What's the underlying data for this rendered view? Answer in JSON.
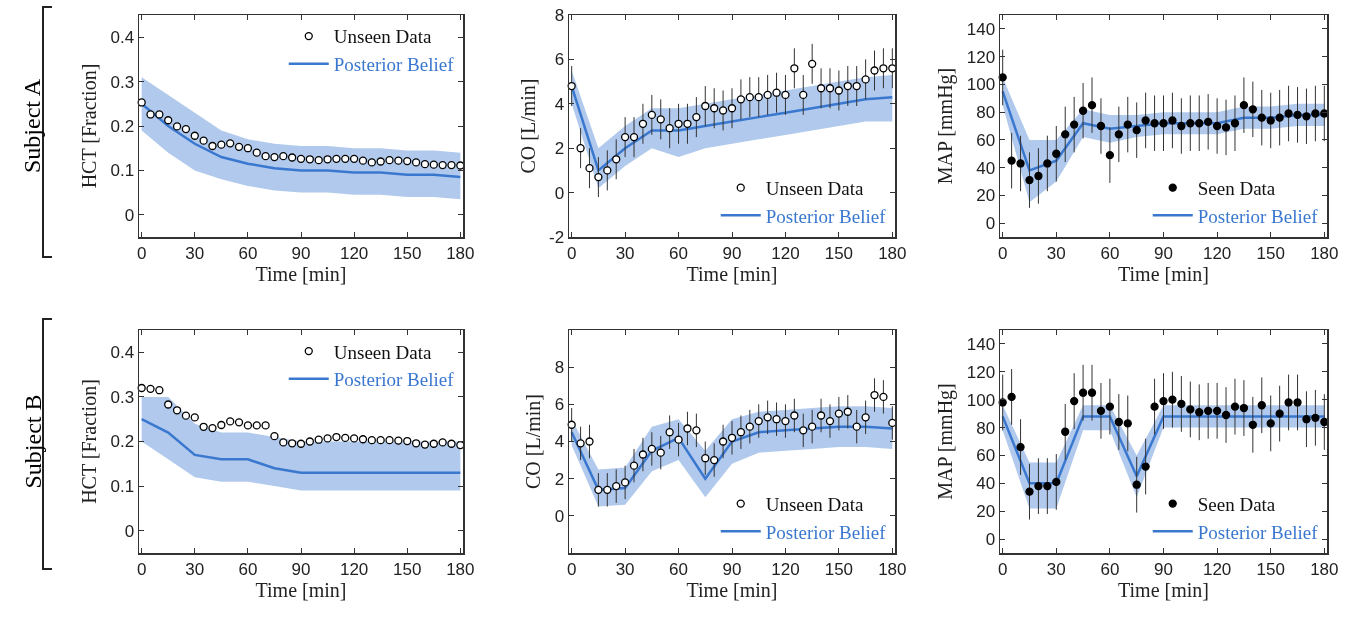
{
  "chart_data": [
    {
      "type": "scatter",
      "xlabel": "Time [min]",
      "ylabel": "HCT [Fraction]",
      "annotations": [
        "Subject A"
      ],
      "xlim": [
        -1.5,
        181.5
      ],
      "ylim": [
        -0.05,
        0.45
      ],
      "xticks": [
        0,
        30,
        60,
        90,
        120,
        150,
        180
      ],
      "yticks": [
        0,
        0.1,
        0.2,
        0.3,
        0.4
      ],
      "grid": false,
      "legend": "top right",
      "marker": "circle",
      "x": [
        0,
        5,
        10,
        15,
        20,
        25,
        30,
        35,
        40,
        45,
        50,
        55,
        60,
        65,
        70,
        75,
        80,
        85,
        90,
        95,
        100,
        105,
        110,
        115,
        120,
        125,
        130,
        135,
        140,
        145,
        150,
        155,
        160,
        165,
        170,
        175,
        180
      ],
      "series": [
        {
          "name": "Unseen Data",
          "color": "#ffffff",
          "values": [
            0.253,
            0.226,
            0.226,
            0.213,
            0.199,
            0.193,
            0.178,
            0.167,
            0.155,
            0.158,
            0.161,
            0.153,
            0.15,
            0.14,
            0.132,
            0.13,
            0.132,
            0.129,
            0.126,
            0.125,
            0.123,
            0.125,
            0.126,
            0.126,
            0.126,
            0.122,
            0.118,
            0.12,
            0.123,
            0.122,
            0.121,
            0.118,
            0.114,
            0.113,
            0.112,
            0.112,
            0.111
          ]
        },
        {
          "name": "Posterior Belief",
          "type": "line",
          "color": "#3a78d0",
          "x": [
            0,
            15,
            30,
            45,
            60,
            75,
            90,
            105,
            120,
            135,
            150,
            165,
            180
          ],
          "marker": "none",
          "values": [
            0.25,
            0.2,
            0.16,
            0.13,
            0.115,
            0.105,
            0.1,
            0.1,
            0.095,
            0.095,
            0.09,
            0.09,
            0.085
          ],
          "lower": [
            0.19,
            0.14,
            0.1,
            0.08,
            0.065,
            0.055,
            0.05,
            0.05,
            0.045,
            0.045,
            0.04,
            0.04,
            0.035
          ],
          "upper": [
            0.31,
            0.27,
            0.23,
            0.19,
            0.17,
            0.16,
            0.155,
            0.155,
            0.15,
            0.15,
            0.145,
            0.145,
            0.14
          ]
        }
      ]
    },
    {
      "type": "scatter",
      "xlabel": "Time [min]",
      "ylabel": "CO [L/min]",
      "xlim": [
        -1.5,
        181.5
      ],
      "ylim": [
        -2,
        8
      ],
      "xticks": [
        0,
        30,
        60,
        90,
        120,
        150,
        180
      ],
      "yticks": [
        -2,
        0,
        2,
        4,
        6,
        8
      ],
      "grid": false,
      "legend": "bottom right",
      "marker": "circle",
      "x": [
        0,
        5,
        10,
        15,
        20,
        25,
        30,
        35,
        40,
        45,
        50,
        55,
        60,
        65,
        70,
        75,
        80,
        85,
        90,
        95,
        100,
        105,
        110,
        115,
        120,
        125,
        130,
        135,
        140,
        145,
        150,
        155,
        160,
        165,
        170,
        175,
        180
      ],
      "series": [
        {
          "name": "Unseen Data",
          "color": "#ffffff",
          "values": [
            4.8,
            2.0,
            1.1,
            0.7,
            1.0,
            1.5,
            2.5,
            2.5,
            3.1,
            3.5,
            3.3,
            2.9,
            3.1,
            3.1,
            3.4,
            3.9,
            3.8,
            3.7,
            3.8,
            4.2,
            4.3,
            4.3,
            4.4,
            4.5,
            4.4,
            5.6,
            4.4,
            5.8,
            4.7,
            4.7,
            4.6,
            4.8,
            4.8,
            5.1,
            5.5,
            5.6,
            5.6
          ],
          "errors": [
            0.9,
            0.9,
            0.9,
            0.9,
            0.9,
            0.9,
            0.9,
            0.9,
            0.9,
            0.9,
            0.9,
            0.9,
            0.9,
            0.9,
            0.9,
            0.9,
            0.9,
            0.9,
            0.9,
            0.9,
            0.9,
            0.9,
            0.9,
            0.9,
            0.9,
            0.9,
            0.9,
            0.9,
            0.9,
            0.9,
            0.9,
            0.9,
            0.9,
            0.9,
            0.9,
            0.9,
            0.9
          ]
        },
        {
          "name": "Posterior Belief",
          "type": "line",
          "color": "#3a78d0",
          "x": [
            0,
            15,
            30,
            45,
            60,
            75,
            90,
            105,
            120,
            135,
            150,
            165,
            180
          ],
          "marker": "none",
          "values": [
            4.8,
            1.0,
            2.0,
            2.8,
            2.8,
            3.0,
            3.2,
            3.4,
            3.6,
            3.8,
            4.0,
            4.2,
            4.3
          ],
          "lower": [
            4.0,
            0.2,
            1.2,
            2.0,
            1.6,
            2.0,
            2.2,
            2.4,
            2.6,
            2.8,
            3.0,
            3.2,
            3.2
          ],
          "upper": [
            5.5,
            2.0,
            3.0,
            3.8,
            3.8,
            4.0,
            4.2,
            4.4,
            4.6,
            4.8,
            5.0,
            5.2,
            5.3
          ]
        }
      ]
    },
    {
      "type": "scatter",
      "xlabel": "Time [min]",
      "ylabel": "MAP [mmHg]",
      "xlim": [
        -1.5,
        181.5
      ],
      "ylim": [
        -10,
        150
      ],
      "xticks": [
        0,
        30,
        60,
        90,
        120,
        150,
        180
      ],
      "yticks": [
        0,
        20,
        40,
        60,
        80,
        100,
        120,
        140
      ],
      "grid": false,
      "legend": "bottom right",
      "marker": "circle",
      "x": [
        0,
        5,
        10,
        15,
        20,
        25,
        30,
        35,
        40,
        45,
        50,
        55,
        60,
        65,
        70,
        75,
        80,
        85,
        90,
        95,
        100,
        105,
        110,
        115,
        120,
        125,
        130,
        135,
        140,
        145,
        150,
        155,
        160,
        165,
        170,
        175,
        180
      ],
      "series": [
        {
          "name": "Seen Data",
          "color": "#000000",
          "values": [
            105,
            45,
            43,
            31,
            34,
            43,
            50,
            64,
            71,
            81,
            85,
            70,
            49,
            64,
            71,
            67,
            74,
            72,
            72,
            74,
            70,
            72,
            72,
            73,
            70,
            69,
            72,
            85,
            82,
            76,
            74,
            76,
            79,
            78,
            77,
            79,
            79
          ],
          "errors": [
            20,
            20,
            20,
            20,
            20,
            20,
            20,
            20,
            20,
            20,
            20,
            20,
            20,
            20,
            20,
            20,
            20,
            20,
            20,
            20,
            20,
            20,
            20,
            20,
            20,
            20,
            20,
            20,
            20,
            20,
            20,
            20,
            20,
            20,
            20,
            20,
            20
          ]
        },
        {
          "name": "Posterior Belief",
          "type": "line",
          "color": "#3a78d0",
          "x": [
            0,
            15,
            30,
            45,
            60,
            75,
            90,
            105,
            120,
            135,
            150,
            165,
            180
          ],
          "marker": "none",
          "values": [
            95,
            38,
            45,
            72,
            68,
            70,
            72,
            72,
            72,
            76,
            76,
            78,
            78
          ],
          "lower": [
            85,
            15,
            30,
            62,
            58,
            62,
            64,
            64,
            64,
            68,
            68,
            70,
            70
          ],
          "upper": [
            105,
            60,
            60,
            82,
            78,
            78,
            80,
            80,
            80,
            84,
            84,
            86,
            86
          ]
        }
      ]
    },
    {
      "type": "scatter",
      "xlabel": "Time [min]",
      "ylabel": "HCT [Fraction]",
      "annotations": [
        "Subject B"
      ],
      "xlim": [
        -1.5,
        181.5
      ],
      "ylim": [
        -0.05,
        0.45
      ],
      "xticks": [
        0,
        30,
        60,
        90,
        120,
        150,
        180
      ],
      "yticks": [
        0,
        0.1,
        0.2,
        0.3,
        0.4
      ],
      "grid": false,
      "legend": "top right",
      "marker": "circle",
      "x": [
        0,
        5,
        10,
        15,
        20,
        25,
        30,
        35,
        40,
        45,
        50,
        55,
        60,
        65,
        70,
        75,
        80,
        85,
        90,
        95,
        100,
        105,
        110,
        115,
        120,
        125,
        130,
        135,
        140,
        145,
        150,
        155,
        160,
        165,
        170,
        175,
        180
      ],
      "series": [
        {
          "name": "Unseen Data",
          "color": "#ffffff",
          "values": [
            0.32,
            0.318,
            0.315,
            0.283,
            0.27,
            0.258,
            0.254,
            0.233,
            0.23,
            0.237,
            0.245,
            0.243,
            0.236,
            0.236,
            0.236,
            0.212,
            0.198,
            0.196,
            0.195,
            0.2,
            0.204,
            0.207,
            0.21,
            0.208,
            0.207,
            0.205,
            0.203,
            0.203,
            0.203,
            0.202,
            0.201,
            0.196,
            0.193,
            0.195,
            0.198,
            0.195,
            0.192
          ]
        },
        {
          "name": "Posterior Belief",
          "type": "line",
          "color": "#3a78d0",
          "x": [
            0,
            15,
            30,
            45,
            60,
            75,
            90,
            105,
            120,
            135,
            150,
            165,
            180
          ],
          "marker": "none",
          "values": [
            0.25,
            0.22,
            0.17,
            0.16,
            0.16,
            0.14,
            0.13,
            0.13,
            0.13,
            0.13,
            0.13,
            0.13,
            0.13
          ],
          "lower": [
            0.2,
            0.16,
            0.12,
            0.11,
            0.11,
            0.1,
            0.09,
            0.09,
            0.09,
            0.09,
            0.09,
            0.09,
            0.09
          ],
          "upper": [
            0.3,
            0.3,
            0.24,
            0.22,
            0.22,
            0.21,
            0.2,
            0.2,
            0.2,
            0.2,
            0.2,
            0.2,
            0.2
          ]
        }
      ]
    },
    {
      "type": "scatter",
      "xlabel": "Time [min]",
      "ylabel": "CO [L/min]",
      "xlim": [
        -1.5,
        181.5
      ],
      "ylim": [
        -2,
        10
      ],
      "xticks": [
        0,
        30,
        60,
        90,
        120,
        150,
        180
      ],
      "yticks": [
        0,
        2,
        4,
        6,
        8
      ],
      "grid": false,
      "legend": "bottom right",
      "marker": "circle",
      "x": [
        0,
        5,
        10,
        15,
        20,
        25,
        30,
        35,
        40,
        45,
        50,
        55,
        60,
        65,
        70,
        75,
        80,
        85,
        90,
        95,
        100,
        105,
        110,
        115,
        120,
        125,
        130,
        135,
        140,
        145,
        150,
        155,
        160,
        165,
        170,
        175,
        180
      ],
      "series": [
        {
          "name": "Unseen Data",
          "color": "#ffffff",
          "values": [
            4.9,
            3.9,
            4.0,
            1.4,
            1.4,
            1.6,
            1.8,
            2.7,
            3.3,
            3.6,
            3.4,
            4.5,
            4.1,
            4.7,
            4.6,
            3.1,
            3.0,
            4.0,
            4.2,
            4.5,
            4.8,
            5.1,
            5.3,
            5.2,
            5.1,
            5.4,
            4.6,
            4.8,
            5.4,
            5.1,
            5.5,
            5.6,
            4.8,
            5.3,
            6.5,
            6.4,
            5.0
          ],
          "errors": [
            0.9,
            0.9,
            0.9,
            0.9,
            0.9,
            0.9,
            0.9,
            0.9,
            0.9,
            0.9,
            0.9,
            0.9,
            0.9,
            0.9,
            0.9,
            0.9,
            0.9,
            0.9,
            0.9,
            0.9,
            0.9,
            0.9,
            0.9,
            0.9,
            0.9,
            0.9,
            0.9,
            0.9,
            0.9,
            0.9,
            0.9,
            0.9,
            0.9,
            0.9,
            0.9,
            0.9,
            0.9
          ]
        },
        {
          "name": "Posterior Belief",
          "type": "line",
          "color": "#3a78d0",
          "x": [
            0,
            15,
            30,
            45,
            60,
            75,
            90,
            105,
            120,
            135,
            150,
            165,
            180
          ],
          "marker": "none",
          "values": [
            4.5,
            1.4,
            1.5,
            3.5,
            4.2,
            2.0,
            4.0,
            4.5,
            4.6,
            4.7,
            4.8,
            4.8,
            4.7
          ],
          "lower": [
            3.8,
            0.5,
            0.6,
            2.4,
            3.0,
            1.0,
            2.8,
            3.4,
            3.5,
            3.6,
            3.7,
            3.7,
            3.6
          ],
          "upper": [
            5.2,
            2.5,
            2.6,
            4.8,
            5.2,
            3.5,
            5.2,
            5.6,
            5.7,
            5.8,
            5.9,
            5.9,
            5.8
          ]
        }
      ]
    },
    {
      "type": "scatter",
      "xlabel": "Time [min]",
      "ylabel": "MAP [mmHg]",
      "xlim": [
        -1.5,
        181.5
      ],
      "ylim": [
        -10,
        150
      ],
      "xticks": [
        0,
        30,
        60,
        90,
        120,
        150,
        180
      ],
      "yticks": [
        0,
        20,
        40,
        60,
        80,
        100,
        120,
        140
      ],
      "grid": false,
      "legend": "bottom right",
      "marker": "circle",
      "x": [
        0,
        5,
        10,
        15,
        20,
        25,
        30,
        35,
        40,
        45,
        50,
        55,
        60,
        65,
        70,
        75,
        80,
        85,
        90,
        95,
        100,
        105,
        110,
        115,
        120,
        125,
        130,
        135,
        140,
        145,
        150,
        155,
        160,
        165,
        170,
        175,
        180
      ],
      "series": [
        {
          "name": "Seen Data",
          "color": "#000000",
          "values": [
            98,
            102,
            66,
            34,
            38,
            38,
            41,
            77,
            99,
            105,
            105,
            92,
            95,
            84,
            83,
            39,
            52,
            95,
            99,
            100,
            97,
            93,
            91,
            92,
            92,
            89,
            95,
            94,
            82,
            96,
            83,
            90,
            98,
            98,
            86,
            87,
            84
          ],
          "errors": [
            20,
            20,
            20,
            20,
            20,
            20,
            20,
            20,
            20,
            20,
            20,
            20,
            20,
            20,
            20,
            20,
            20,
            20,
            20,
            20,
            20,
            20,
            20,
            20,
            20,
            20,
            20,
            20,
            20,
            20,
            20,
            20,
            20,
            20,
            20,
            20,
            20
          ]
        },
        {
          "name": "Posterior Belief",
          "type": "line",
          "color": "#3a78d0",
          "x": [
            0,
            15,
            30,
            45,
            60,
            75,
            90,
            105,
            120,
            135,
            150,
            165,
            180
          ],
          "marker": "none",
          "values": [
            88,
            40,
            40,
            88,
            88,
            45,
            88,
            88,
            88,
            88,
            88,
            88,
            88
          ],
          "lower": [
            78,
            22,
            22,
            78,
            78,
            30,
            80,
            80,
            80,
            80,
            80,
            80,
            80
          ],
          "upper": [
            96,
            55,
            55,
            96,
            96,
            60,
            96,
            96,
            96,
            96,
            96,
            96,
            96
          ]
        }
      ]
    }
  ]
}
